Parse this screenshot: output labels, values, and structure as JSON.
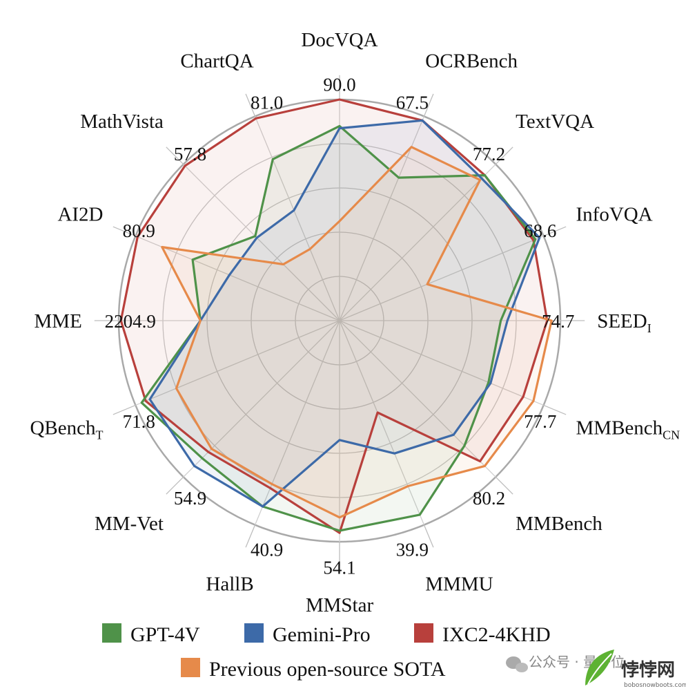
{
  "chart_data": {
    "type": "radar",
    "title": "",
    "axes": [
      {
        "name": "DocVQA",
        "sub": "",
        "label": "90.0"
      },
      {
        "name": "OCRBench",
        "sub": "",
        "label": "67.5"
      },
      {
        "name": "TextVQA",
        "sub": "",
        "label": "77.2"
      },
      {
        "name": "InfoVQA",
        "sub": "",
        "label": "68.6"
      },
      {
        "name": "SEED",
        "sub": "I",
        "label": "74.7"
      },
      {
        "name": "MMBench",
        "sub": "CN",
        "label": "77.7"
      },
      {
        "name": "MMBench",
        "sub": "",
        "label": "80.2"
      },
      {
        "name": "MMMU",
        "sub": "",
        "label": "39.9"
      },
      {
        "name": "MMStar",
        "sub": "",
        "label": "54.1"
      },
      {
        "name": "HallB",
        "sub": "",
        "label": "40.9"
      },
      {
        "name": "MM-Vet",
        "sub": "",
        "label": "54.9"
      },
      {
        "name": "QBench",
        "sub": "T",
        "label": "71.8"
      },
      {
        "name": "MME",
        "sub": "",
        "label": "2204.9"
      },
      {
        "name": "AI2D",
        "sub": "",
        "label": "80.9"
      },
      {
        "name": "MathVista",
        "sub": "",
        "label": "57.8"
      },
      {
        "name": "ChartQA",
        "sub": "",
        "label": "81.0"
      }
    ],
    "grid_levels": 5,
    "series": [
      {
        "name": "GPT-4V",
        "color": "#4f9249",
        "values": [
          0.88,
          0.7,
          0.93,
          0.96,
          0.73,
          0.73,
          0.8,
          0.95,
          0.95,
          0.91,
          0.88,
          0.97,
          0.63,
          0.72,
          0.54,
          0.79
        ]
      },
      {
        "name": "Gemini-Pro",
        "color": "#3d6aa8",
        "values": [
          0.87,
          0.98,
          0.91,
          0.98,
          0.76,
          0.74,
          0.73,
          0.65,
          0.54,
          0.91,
          0.93,
          0.93,
          0.63,
          0.54,
          0.53,
          0.54
        ]
      },
      {
        "name": "IXC2-4KHD",
        "color": "#b8403c",
        "values": [
          1.0,
          0.98,
          0.93,
          0.95,
          0.94,
          0.9,
          0.9,
          0.45,
          0.96,
          0.82,
          0.84,
          0.95,
          0.99,
          0.99,
          0.99,
          0.99
        ]
      },
      {
        "name": "Previous open-source SOTA",
        "color": "#e68a4a",
        "values": [
          0.45,
          0.85,
          0.9,
          0.43,
          0.96,
          0.95,
          0.93,
          0.81,
          0.89,
          0.8,
          0.82,
          0.8,
          0.63,
          0.87,
          0.36,
          0.35
        ]
      }
    ],
    "legend_position": "bottom"
  },
  "watermark": {
    "account_label": "公众号 · 量子位",
    "brand": "悖悖网",
    "domain": "bobosnowboots.com"
  }
}
